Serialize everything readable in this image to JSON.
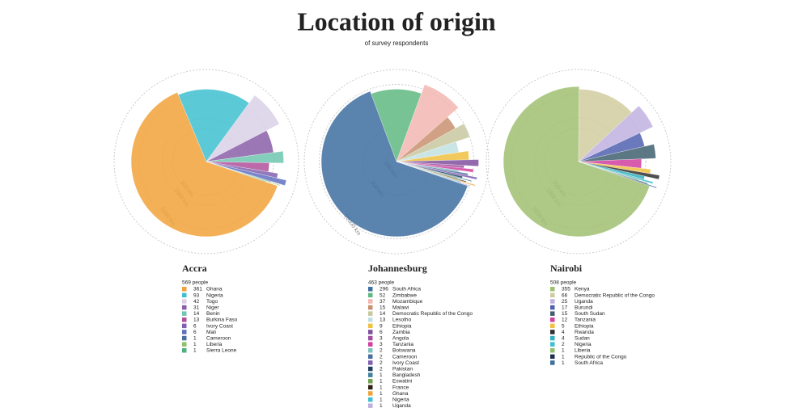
{
  "title": "Location of origin",
  "subtitle": "of survey respondents",
  "chart_data": [
    {
      "type": "radial",
      "title": "Accra",
      "subtitle": "569 people",
      "log_scale": true,
      "rlim": [
        50,
        20000
      ],
      "rticks": [
        {
          "value": 500,
          "label": "500 km"
        },
        {
          "value": 1000,
          "label": "1000 km"
        },
        {
          "value": 5000,
          "label": "5000 km"
        }
      ],
      "categories": [
        "Ghana",
        "Nigeria",
        "Togo",
        "Niger",
        "Benin",
        "Burkina Faso",
        "Ivory Coast",
        "Mali",
        "Cameroon",
        "Liberia",
        "Sierra Leone"
      ],
      "values": [
        361,
        93,
        42,
        31,
        14,
        13,
        6,
        6,
        1,
        1,
        1
      ],
      "colors": [
        "#f2a23a",
        "#3fbfcf",
        "#d9d0e6",
        "#8b5fa8",
        "#6fc6b0",
        "#b0509a",
        "#8060b0",
        "#6070c0",
        "#4a6fa0",
        "#8fc06a",
        "#50b080"
      ]
    },
    {
      "type": "radial",
      "title": "Johannesburg",
      "subtitle": "463 people",
      "log_scale": true,
      "rlim": [
        50,
        20000
      ],
      "rticks": [
        {
          "value": 100,
          "label": "100 km"
        },
        {
          "value": 500,
          "label": "500 km"
        },
        {
          "value": 10000,
          "label": "10000 km"
        }
      ],
      "categories": [
        "South Africa",
        "Zimbabwe",
        "Mozambique",
        "Malawi",
        "Democratic Republic of the Congo",
        "Lesotho",
        "Ethiopia",
        "Zambia",
        "Angola",
        "Tanzania",
        "Botswana",
        "Cameroon",
        "Ivory Coast",
        "Pakistan",
        "Bangladesh",
        "Eswatini",
        "France",
        "Ghana",
        "Nigeria",
        "Uganda"
      ],
      "values": [
        296,
        52,
        37,
        15,
        14,
        13,
        9,
        6,
        3,
        3,
        2,
        2,
        2,
        2,
        1,
        1,
        1,
        1,
        1,
        1
      ],
      "colors": [
        "#3d6fa0",
        "#60b880",
        "#f2b6b0",
        "#c89070",
        "#c8c8a0",
        "#c0e0e0",
        "#f0c040",
        "#8050a0",
        "#a050a0",
        "#d040a0",
        "#80c0c0",
        "#4a6fa0",
        "#8060b0",
        "#204060",
        "#4080a0",
        "#70a050",
        "#302010",
        "#f2a23a",
        "#3fbfcf",
        "#c0b0e0"
      ]
    },
    {
      "type": "radial",
      "title": "Nairobi",
      "subtitle": "508 people",
      "log_scale": true,
      "rlim": [
        50,
        20000
      ],
      "rticks": [
        {
          "value": 500,
          "label": "500 km"
        },
        {
          "value": 1000,
          "label": "1000 km"
        },
        {
          "value": 5000,
          "label": "5000 km"
        }
      ],
      "categories": [
        "Kenya",
        "Democratic Republic of the Congo",
        "Uganda",
        "Burundi",
        "South Sudan",
        "Tanzania",
        "Ethiopia",
        "Rwanda",
        "Sudan",
        "Nigeria",
        "Liberia",
        "Republic of the Congo",
        "South Africa"
      ],
      "values": [
        355,
        66,
        25,
        17,
        15,
        12,
        5,
        4,
        4,
        2,
        1,
        1,
        1
      ],
      "colors": [
        "#a0c070",
        "#d0cca0",
        "#c0b0e0",
        "#5060b0",
        "#406070",
        "#d040a0",
        "#f0c040",
        "#303030",
        "#30b0c0",
        "#3fbfcf",
        "#8fc06a",
        "#203050",
        "#3d6fa0"
      ]
    }
  ]
}
